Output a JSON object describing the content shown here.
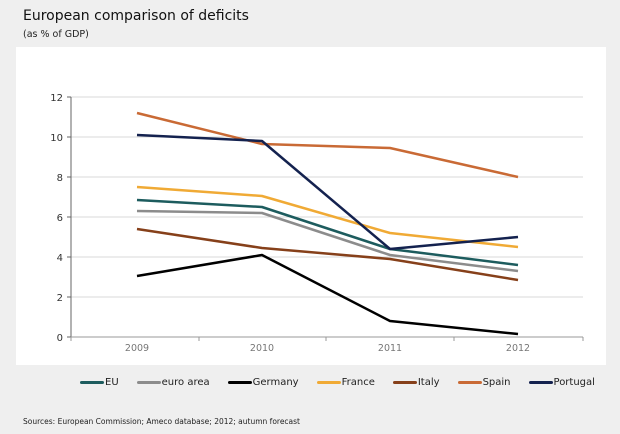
{
  "chart_data": {
    "type": "line",
    "title": "European comparison of deficits",
    "subtitle": "(as % of GDP)",
    "categories": [
      "2009",
      "2010",
      "2011",
      "2012"
    ],
    "ylim": [
      0,
      12
    ],
    "yticks": [
      "0",
      "2",
      "4",
      "6",
      "8",
      "10",
      "12"
    ],
    "grid": true,
    "legend_position": "bottom",
    "series": [
      {
        "name": "EU",
        "color": "#1d5c5e",
        "values": [
          6.85,
          6.5,
          4.4,
          3.6
        ]
      },
      {
        "name": "euro area",
        "color": "#8c8c8c",
        "values": [
          6.3,
          6.2,
          4.1,
          3.3
        ]
      },
      {
        "name": "Germany",
        "color": "#000000",
        "values": [
          3.05,
          4.1,
          0.8,
          0.15
        ]
      },
      {
        "name": "France",
        "color": "#f0aa35",
        "values": [
          7.5,
          7.05,
          5.2,
          4.5
        ]
      },
      {
        "name": "Italy",
        "color": "#86401a",
        "values": [
          5.4,
          4.45,
          3.9,
          2.85
        ]
      },
      {
        "name": "Spain",
        "color": "#c96a35",
        "values": [
          11.2,
          9.65,
          9.45,
          8.0
        ]
      },
      {
        "name": "Portugal",
        "color": "#14224f",
        "values": [
          10.1,
          9.8,
          4.4,
          5.0
        ]
      }
    ],
    "source": "Sources: European Commission; Ameco database; 2012; autumn forecast"
  }
}
